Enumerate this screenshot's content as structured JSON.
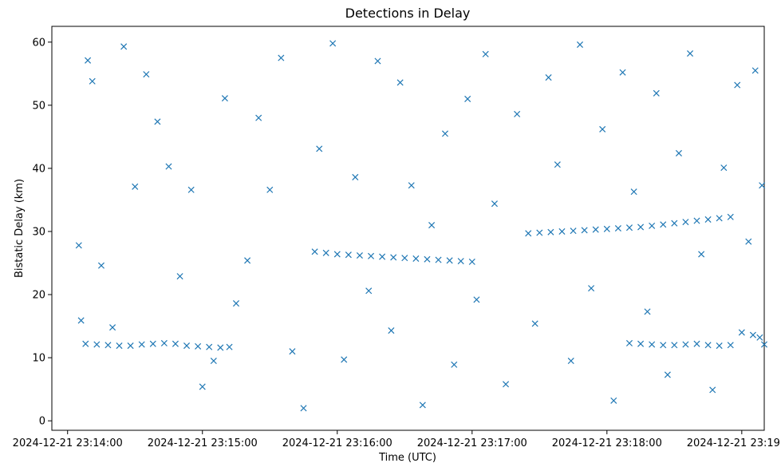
{
  "chart_data": {
    "type": "scatter",
    "title": "Detections in Delay",
    "xlabel": "Time (UTC)",
    "ylabel": "Bistatic Delay (km)",
    "x_unit": "UTC timestamp",
    "xlim": [
      "2024-12-21 23:13:53",
      "2024-12-21 23:19:10"
    ],
    "ylim": [
      -1.5,
      62.5
    ],
    "x_ticks": [
      "2024-12-21 23:14:00",
      "2024-12-21 23:15:00",
      "2024-12-21 23:16:00",
      "2024-12-21 23:17:00",
      "2024-12-21 23:18:00",
      "2024-12-21 23:19:00"
    ],
    "y_ticks": [
      0,
      10,
      20,
      30,
      40,
      50,
      60
    ],
    "marker": "x",
    "color": "#1f77b4",
    "grid": false,
    "series": [
      {
        "name": "",
        "points": [
          [
            "2024-12-21 23:14:08",
            12.2
          ],
          [
            "2024-12-21 23:14:13",
            12.1
          ],
          [
            "2024-12-21 23:14:18",
            12.0
          ],
          [
            "2024-12-21 23:14:23",
            11.9
          ],
          [
            "2024-12-21 23:14:28",
            11.9
          ],
          [
            "2024-12-21 23:14:33",
            12.1
          ],
          [
            "2024-12-21 23:14:38",
            12.2
          ],
          [
            "2024-12-21 23:14:43",
            12.3
          ],
          [
            "2024-12-21 23:14:48",
            12.2
          ],
          [
            "2024-12-21 23:14:53",
            11.9
          ],
          [
            "2024-12-21 23:14:58",
            11.8
          ],
          [
            "2024-12-21 23:15:03",
            11.7
          ],
          [
            "2024-12-21 23:15:08",
            11.6
          ],
          [
            "2024-12-21 23:15:12",
            11.7
          ],
          [
            "2024-12-21 23:15:50",
            26.8
          ],
          [
            "2024-12-21 23:15:55",
            26.6
          ],
          [
            "2024-12-21 23:16:00",
            26.4
          ],
          [
            "2024-12-21 23:16:05",
            26.3
          ],
          [
            "2024-12-21 23:16:10",
            26.2
          ],
          [
            "2024-12-21 23:16:15",
            26.1
          ],
          [
            "2024-12-21 23:16:20",
            26.0
          ],
          [
            "2024-12-21 23:16:25",
            25.9
          ],
          [
            "2024-12-21 23:16:30",
            25.8
          ],
          [
            "2024-12-21 23:16:35",
            25.7
          ],
          [
            "2024-12-21 23:16:40",
            25.6
          ],
          [
            "2024-12-21 23:16:45",
            25.5
          ],
          [
            "2024-12-21 23:16:50",
            25.4
          ],
          [
            "2024-12-21 23:16:55",
            25.3
          ],
          [
            "2024-12-21 23:17:00",
            25.2
          ],
          [
            "2024-12-21 23:17:25",
            29.7
          ],
          [
            "2024-12-21 23:17:30",
            29.8
          ],
          [
            "2024-12-21 23:17:35",
            29.9
          ],
          [
            "2024-12-21 23:17:40",
            30.0
          ],
          [
            "2024-12-21 23:17:45",
            30.1
          ],
          [
            "2024-12-21 23:17:50",
            30.2
          ],
          [
            "2024-12-21 23:17:55",
            30.3
          ],
          [
            "2024-12-21 23:18:00",
            30.4
          ],
          [
            "2024-12-21 23:18:05",
            30.5
          ],
          [
            "2024-12-21 23:18:10",
            30.6
          ],
          [
            "2024-12-21 23:18:15",
            30.7
          ],
          [
            "2024-12-21 23:18:20",
            30.9
          ],
          [
            "2024-12-21 23:18:25",
            31.1
          ],
          [
            "2024-12-21 23:18:30",
            31.3
          ],
          [
            "2024-12-21 23:18:35",
            31.5
          ],
          [
            "2024-12-21 23:18:40",
            31.7
          ],
          [
            "2024-12-21 23:18:45",
            31.9
          ],
          [
            "2024-12-21 23:18:50",
            32.1
          ],
          [
            "2024-12-21 23:18:55",
            32.3
          ],
          [
            "2024-12-21 23:18:10",
            12.3
          ],
          [
            "2024-12-21 23:18:15",
            12.2
          ],
          [
            "2024-12-21 23:18:20",
            12.1
          ],
          [
            "2024-12-21 23:18:25",
            12.0
          ],
          [
            "2024-12-21 23:18:30",
            12.0
          ],
          [
            "2024-12-21 23:18:35",
            12.1
          ],
          [
            "2024-12-21 23:18:40",
            12.2
          ],
          [
            "2024-12-21 23:18:45",
            12.0
          ],
          [
            "2024-12-21 23:18:50",
            11.9
          ],
          [
            "2024-12-21 23:18:55",
            12.0
          ],
          [
            "2024-12-21 23:19:00",
            14.0
          ],
          [
            "2024-12-21 23:19:05",
            13.6
          ],
          [
            "2024-12-21 23:19:08",
            13.2
          ],
          [
            "2024-12-21 23:14:05",
            27.8
          ],
          [
            "2024-12-21 23:14:06",
            15.9
          ],
          [
            "2024-12-21 23:14:09",
            57.1
          ],
          [
            "2024-12-21 23:14:11",
            53.8
          ],
          [
            "2024-12-21 23:14:15",
            24.6
          ],
          [
            "2024-12-21 23:14:20",
            14.8
          ],
          [
            "2024-12-21 23:14:25",
            59.3
          ],
          [
            "2024-12-21 23:14:30",
            37.1
          ],
          [
            "2024-12-21 23:14:35",
            54.9
          ],
          [
            "2024-12-21 23:14:40",
            47.4
          ],
          [
            "2024-12-21 23:14:45",
            40.3
          ],
          [
            "2024-12-21 23:14:50",
            22.9
          ],
          [
            "2024-12-21 23:14:55",
            36.6
          ],
          [
            "2024-12-21 23:15:00",
            5.4
          ],
          [
            "2024-12-21 23:15:05",
            9.5
          ],
          [
            "2024-12-21 23:15:10",
            51.1
          ],
          [
            "2024-12-21 23:15:15",
            18.6
          ],
          [
            "2024-12-21 23:15:20",
            25.4
          ],
          [
            "2024-12-21 23:15:25",
            48.0
          ],
          [
            "2024-12-21 23:15:30",
            36.6
          ],
          [
            "2024-12-21 23:15:35",
            57.5
          ],
          [
            "2024-12-21 23:15:40",
            11.0
          ],
          [
            "2024-12-21 23:15:45",
            2.0
          ],
          [
            "2024-12-21 23:15:52",
            43.1
          ],
          [
            "2024-12-21 23:15:58",
            59.8
          ],
          [
            "2024-12-21 23:16:03",
            9.7
          ],
          [
            "2024-12-21 23:16:08",
            38.6
          ],
          [
            "2024-12-21 23:16:14",
            20.6
          ],
          [
            "2024-12-21 23:16:18",
            57.0
          ],
          [
            "2024-12-21 23:16:24",
            14.3
          ],
          [
            "2024-12-21 23:16:28",
            53.6
          ],
          [
            "2024-12-21 23:16:33",
            37.3
          ],
          [
            "2024-12-21 23:16:38",
            2.5
          ],
          [
            "2024-12-21 23:16:42",
            31.0
          ],
          [
            "2024-12-21 23:16:48",
            45.5
          ],
          [
            "2024-12-21 23:16:52",
            8.9
          ],
          [
            "2024-12-21 23:16:58",
            51.0
          ],
          [
            "2024-12-21 23:17:02",
            19.2
          ],
          [
            "2024-12-21 23:17:06",
            58.1
          ],
          [
            "2024-12-21 23:17:10",
            34.4
          ],
          [
            "2024-12-21 23:17:15",
            5.8
          ],
          [
            "2024-12-21 23:17:20",
            48.6
          ],
          [
            "2024-12-21 23:17:28",
            15.4
          ],
          [
            "2024-12-21 23:17:34",
            54.4
          ],
          [
            "2024-12-21 23:17:38",
            40.6
          ],
          [
            "2024-12-21 23:17:44",
            9.5
          ],
          [
            "2024-12-21 23:17:48",
            59.6
          ],
          [
            "2024-12-21 23:17:53",
            21.0
          ],
          [
            "2024-12-21 23:17:58",
            46.2
          ],
          [
            "2024-12-21 23:18:03",
            3.2
          ],
          [
            "2024-12-21 23:18:07",
            55.2
          ],
          [
            "2024-12-21 23:18:12",
            36.3
          ],
          [
            "2024-12-21 23:18:18",
            17.3
          ],
          [
            "2024-12-21 23:18:22",
            51.9
          ],
          [
            "2024-12-21 23:18:27",
            7.3
          ],
          [
            "2024-12-21 23:18:32",
            42.4
          ],
          [
            "2024-12-21 23:18:37",
            58.2
          ],
          [
            "2024-12-21 23:18:42",
            26.4
          ],
          [
            "2024-12-21 23:18:47",
            4.9
          ],
          [
            "2024-12-21 23:18:52",
            40.1
          ],
          [
            "2024-12-21 23:18:58",
            53.2
          ],
          [
            "2024-12-21 23:19:03",
            28.4
          ],
          [
            "2024-12-21 23:19:06",
            55.5
          ],
          [
            "2024-12-21 23:19:09",
            37.3
          ],
          [
            "2024-12-21 23:19:10",
            12.1
          ]
        ]
      }
    ]
  }
}
